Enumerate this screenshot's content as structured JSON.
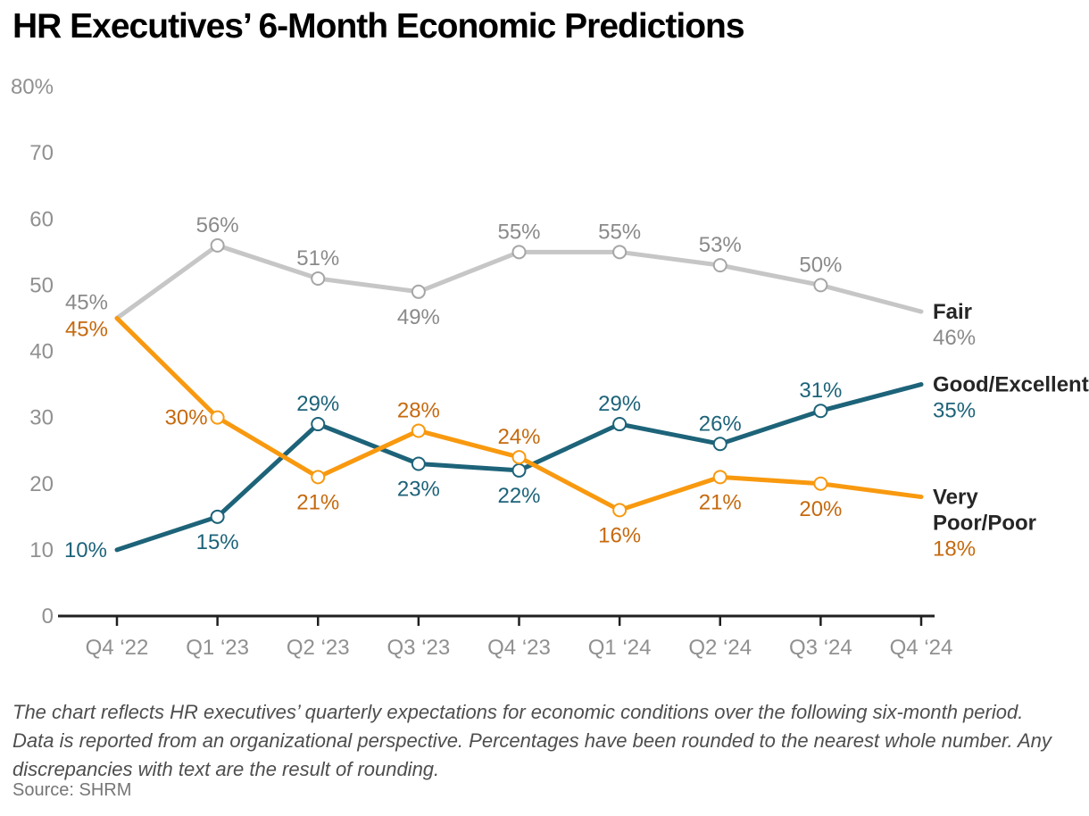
{
  "title": "HR Executives’ 6-Month Economic Predictions",
  "footnote": "The chart reflects HR executives’ quarterly expectations for economic conditions over the following six-month period. Data is reported from an organizational perspective. Percentages have been rounded to the nearest whole number. Any discrepancies with text are the result of rounding.",
  "source": "Source: SHRM",
  "colors": {
    "background": "#ffffff",
    "title_text": "#000000",
    "axis_line": "#1f1f1f",
    "axis_label_text": "#909090",
    "fair_line": "#c6c6c6",
    "fair_marker": "#a6a6a6",
    "fair_label_text": "#8a8a8a",
    "good_excellent_line": "#1d6379",
    "very_poor_line": "#f8990f",
    "very_poor_label_text": "#c6690e",
    "legend_name_text": "#262626",
    "footnote_text": "#4e4e4e",
    "source_text": "#767676"
  },
  "chart_data": {
    "type": "line",
    "title": "HR Executives’ 6-Month Economic Predictions",
    "categories": [
      "Q4 ‘22",
      "Q1 ‘23",
      "Q2 ‘23",
      "Q3 ‘23",
      "Q4 ‘23",
      "Q1 ‘24",
      "Q2 ‘24",
      "Q3 ‘24",
      "Q4 ‘24"
    ],
    "xlabel": "",
    "ylabel": "",
    "y_axis": {
      "ylim": [
        0,
        80
      ],
      "ticks": [
        {
          "value": 80,
          "label": "80%"
        },
        {
          "value": 70,
          "label": "70"
        },
        {
          "value": 60,
          "label": "60"
        },
        {
          "value": 50,
          "label": "50"
        },
        {
          "value": 40,
          "label": "40"
        },
        {
          "value": 30,
          "label": "30"
        },
        {
          "value": 20,
          "label": "20"
        },
        {
          "value": 10,
          "label": "10"
        },
        {
          "value": 0,
          "label": "0"
        }
      ]
    },
    "grid": false,
    "legend_position": "right",
    "series": [
      {
        "id": "fair",
        "name": "Fair",
        "color": "#c6c6c6",
        "marker_color": "#a6a6a6",
        "label_color": "#8a8a8a",
        "values": [
          45,
          56,
          51,
          49,
          55,
          55,
          53,
          50,
          46
        ],
        "point_labels": [
          "45%",
          "56%",
          "51%",
          "49%",
          "55%",
          "55%",
          "53%",
          "50%"
        ],
        "label_positions": [
          "left-up",
          "above",
          "above",
          "below",
          "above",
          "above",
          "above",
          "above"
        ],
        "legend": {
          "name_lines": [
            "Fair"
          ],
          "value": "46%"
        }
      },
      {
        "id": "good-excellent",
        "name": "Good/Excellent",
        "color": "#1d6379",
        "marker_color": "#1d6379",
        "label_color": "#1d6379",
        "values": [
          10,
          15,
          29,
          23,
          22,
          29,
          26,
          31,
          35
        ],
        "point_labels": [
          "10%",
          "15%",
          "29%",
          "23%",
          "22%",
          "29%",
          "26%",
          "31%"
        ],
        "label_positions": [
          "left",
          "below",
          "above",
          "below",
          "below",
          "above",
          "above",
          "above"
        ],
        "legend": {
          "name_lines": [
            "Good/Excellent"
          ],
          "value": "35%"
        }
      },
      {
        "id": "very-poor-poor",
        "name": "Very Poor/Poor",
        "color": "#f8990f",
        "marker_color": "#f8990f",
        "label_color": "#c6690e",
        "values": [
          45,
          30,
          21,
          28,
          24,
          16,
          21,
          20,
          18
        ],
        "point_labels": [
          "45%",
          "30%",
          "21%",
          "28%",
          "24%",
          "16%",
          "21%",
          "20%"
        ],
        "label_positions": [
          "left-down",
          "left",
          "below",
          "above",
          "above",
          "below",
          "below",
          "below"
        ],
        "legend": {
          "name_lines": [
            "Very",
            "Poor/Poor"
          ],
          "value": "18%"
        }
      }
    ]
  }
}
